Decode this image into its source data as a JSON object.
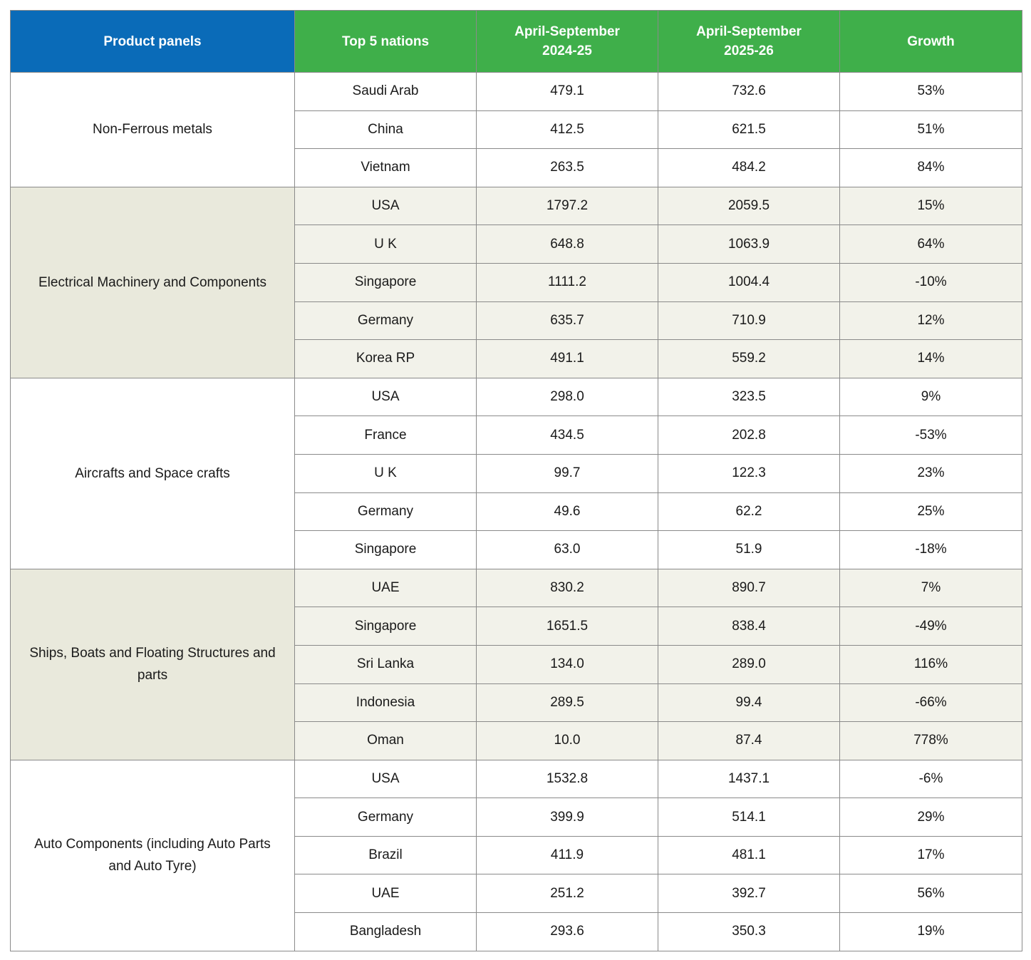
{
  "table": {
    "header": [
      "Product panels",
      "Top 5 nations",
      "April-September 2024-25",
      "April-September 2025-26",
      "Growth"
    ],
    "groups": [
      {
        "panel": "Non-Ferrous metals",
        "rows": [
          [
            "Saudi Arab",
            "479.1",
            "732.6",
            "53%"
          ],
          [
            "China",
            "412.5",
            "621.5",
            "51%"
          ],
          [
            "Vietnam",
            "263.5",
            "484.2",
            "84%"
          ]
        ]
      },
      {
        "panel": "Electrical Machinery and Components",
        "rows": [
          [
            "USA",
            "1797.2",
            "2059.5",
            "15%"
          ],
          [
            "U K",
            "648.8",
            "1063.9",
            "64%"
          ],
          [
            "Singapore",
            "1111.2",
            "1004.4",
            "-10%"
          ],
          [
            "Germany",
            "635.7",
            "710.9",
            "12%"
          ],
          [
            "Korea RP",
            "491.1",
            "559.2",
            "14%"
          ]
        ]
      },
      {
        "panel": "Aircrafts and Space crafts",
        "rows": [
          [
            "USA",
            "298.0",
            "323.5",
            "9%"
          ],
          [
            "France",
            "434.5",
            "202.8",
            "-53%"
          ],
          [
            "U K",
            "99.7",
            "122.3",
            "23%"
          ],
          [
            "Germany",
            "49.6",
            "62.2",
            "25%"
          ],
          [
            "Singapore",
            "63.0",
            "51.9",
            "-18%"
          ]
        ]
      },
      {
        "panel": "Ships, Boats and Floating Structures and parts",
        "rows": [
          [
            "UAE",
            "830.2",
            "890.7",
            "7%"
          ],
          [
            "Singapore",
            "1651.5",
            "838.4",
            "-49%"
          ],
          [
            "Sri Lanka",
            "134.0",
            "289.0",
            "116%"
          ],
          [
            "Indonesia",
            "289.5",
            "99.4",
            "-66%"
          ],
          [
            "Oman",
            "10.0",
            "87.4",
            "778%"
          ]
        ]
      },
      {
        "panel": "Auto Components (including Auto Parts and Auto Tyre)",
        "rows": [
          [
            "USA",
            "1532.8",
            "1437.1",
            "-6%"
          ],
          [
            "Germany",
            "399.9",
            "514.1",
            "29%"
          ],
          [
            "Brazil",
            "411.9",
            "481.1",
            "17%"
          ],
          [
            "UAE",
            "251.2",
            "392.7",
            "56%"
          ],
          [
            "Bangladesh",
            "293.6",
            "350.3",
            "19%"
          ]
        ]
      }
    ]
  }
}
